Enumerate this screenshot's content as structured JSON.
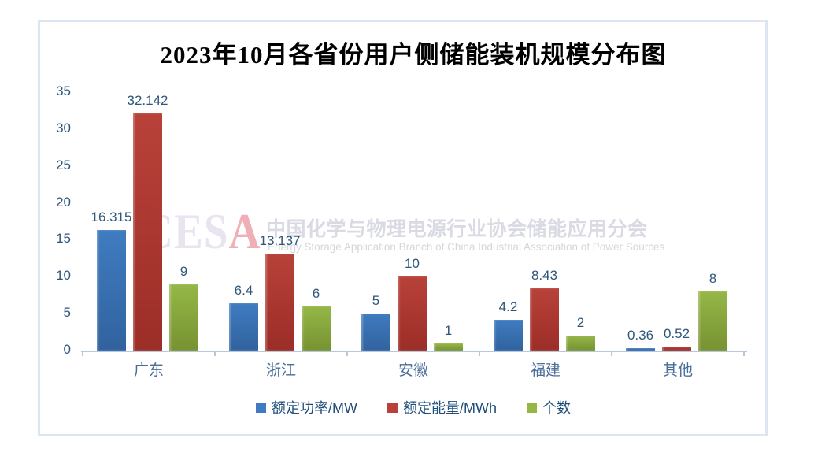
{
  "chart_data": {
    "type": "bar",
    "title": "2023年10月各省份用户侧储能装机规模分布图",
    "categories": [
      "广东",
      "浙江",
      "安徽",
      "福建",
      "其他"
    ],
    "series": [
      {
        "name": "额定功率/MW",
        "values": [
          16.315,
          6.4,
          5,
          4.2,
          0.36
        ],
        "color": "#3f7cc1",
        "color_dark": "#31629e"
      },
      {
        "name": "额定能量/MWh",
        "values": [
          32.142,
          13.137,
          10,
          8.43,
          0.52
        ],
        "color": "#b8423a",
        "color_dark": "#9c2d27"
      },
      {
        "name": "个数",
        "values": [
          9,
          6,
          1,
          2,
          8
        ],
        "color": "#95b747",
        "color_dark": "#779232"
      }
    ],
    "xlabel": "",
    "ylabel": "",
    "ylim": [
      0,
      35
    ],
    "ytick_step": 5,
    "grid": false,
    "legend_position": "bottom",
    "data_labels": true
  },
  "watermark": {
    "logo_part1": "CES",
    "logo_part2": "A",
    "cn": "中国化学与物理电源行业协会储能应用分会",
    "en": "Energy Storage Application Branch of China Industrial Association of Power Sources"
  },
  "colors": {
    "frame_border": "#dce6f3",
    "axis_line": "#b6c8de",
    "tick_label": "#30567c",
    "data_label": "#30567c",
    "category_label": "#4a6d99",
    "legend_text": "#1f4e79",
    "watermark_logo_light": "#e9e4f0",
    "watermark_logo_accent": "#f0aeb6",
    "watermark_cn_text": "#d9dae3",
    "watermark_en_text": "#d6d6db"
  }
}
